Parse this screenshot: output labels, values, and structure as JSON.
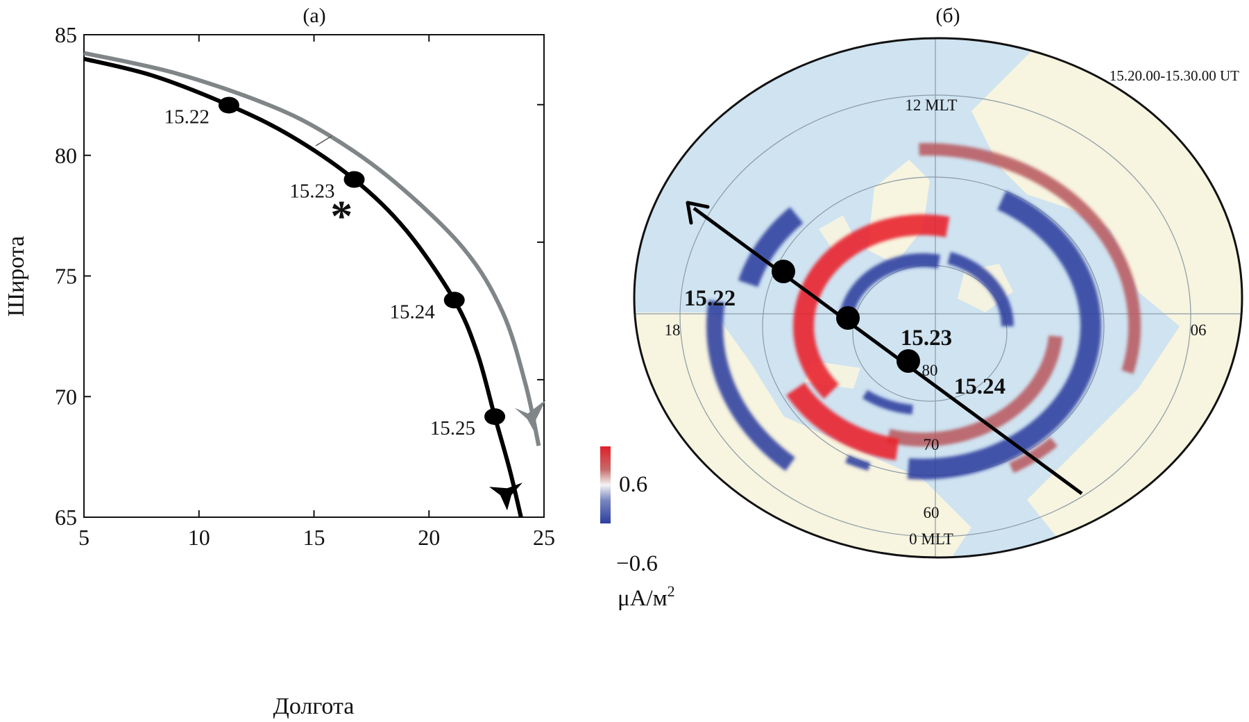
{
  "chart_data": [
    {
      "type": "line",
      "panel_label": "(a)",
      "xlabel": "Долгота",
      "ylabel": "Широта",
      "xlim": [
        5,
        25
      ],
      "ylim": [
        65,
        85
      ],
      "xticks": [
        "5",
        "10",
        "15",
        "20",
        "25"
      ],
      "yticks": [
        "65",
        "70",
        "75",
        "80",
        "85"
      ],
      "xtick_values": [
        5,
        10,
        15,
        20,
        25
      ],
      "ytick_values": [
        65,
        70,
        75,
        80,
        85
      ],
      "series": [
        {
          "name": "black-track",
          "color": "#000000",
          "x": [
            5,
            8,
            11.3,
            14,
            16.75,
            19,
            21.1,
            22.1,
            22.86,
            23.5,
            24.0
          ],
          "y": [
            84.0,
            83.3,
            82.08,
            80.8,
            79.0,
            76.9,
            74.0,
            71.8,
            69.17,
            67.0,
            65.0
          ]
        },
        {
          "name": "gray-track",
          "color": "#808688",
          "x": [
            5,
            9,
            13,
            15.64,
            18.5,
            21.5,
            23.2,
            24.2,
            24.77
          ],
          "y": [
            84.24,
            83.4,
            82.1,
            80.84,
            78.9,
            76.14,
            73.5,
            70.5,
            67.96
          ]
        }
      ],
      "markers": [
        {
          "label": "15.22",
          "x": 11.3,
          "y": 82.08
        },
        {
          "label": "15.23",
          "x": 16.75,
          "y": 79.0
        },
        {
          "label": "15.24",
          "x": 21.1,
          "y": 74.0
        },
        {
          "label": "15.25",
          "x": 22.86,
          "y": 69.17
        }
      ],
      "star": {
        "x": 16.2,
        "y": 77.9,
        "color": "#e8202a"
      }
    },
    {
      "type": "heatmap",
      "panel_label": "(б)",
      "time_range": "15.20.00-15.30.00 UT",
      "mlt_top": "12 MLT",
      "mlt_bottom": "0 MLT",
      "mlt_left": "18",
      "mlt_right": "06",
      "lat_labels": [
        "80",
        "70",
        "60"
      ],
      "colorbar": {
        "max": "0.6",
        "min": "−0.6",
        "unit": "μA/м",
        "unit_sup": "2",
        "max_color": "#e8202a",
        "min_color": "#2c3f9e"
      },
      "track_markers": [
        "15.22",
        "15.23",
        "15.24"
      ]
    }
  ]
}
